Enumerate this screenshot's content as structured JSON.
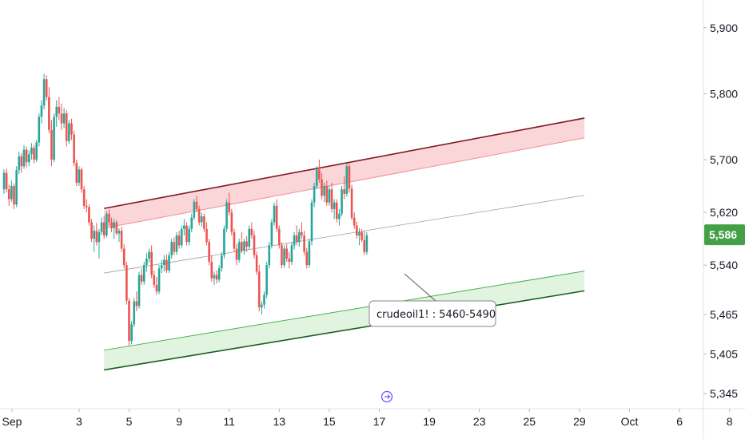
{
  "chart_data": {
    "type": "candlestick",
    "ylim": [
      5300,
      5930
    ],
    "y_ticks": [
      {
        "value": 5900,
        "label": "5,900"
      },
      {
        "value": 5800,
        "label": "5,800"
      },
      {
        "value": 5700,
        "label": "5,700"
      },
      {
        "value": 5620,
        "label": "5,620"
      },
      {
        "value": 5540,
        "label": "5,540"
      },
      {
        "value": 5465,
        "label": "5,465"
      },
      {
        "value": 5405,
        "label": "5,405"
      },
      {
        "value": 5345,
        "label": "5,345"
      }
    ],
    "x_ticks": [
      {
        "t": 0,
        "label": "Sep"
      },
      {
        "t": 3,
        "label": "3"
      },
      {
        "t": 5,
        "label": "5"
      },
      {
        "t": 7,
        "label": "9"
      },
      {
        "t": 9,
        "label": "11"
      },
      {
        "t": 11,
        "label": "13"
      },
      {
        "t": 13,
        "label": "15"
      },
      {
        "t": 15,
        "label": "17"
      },
      {
        "t": 17,
        "label": "19"
      },
      {
        "t": 19,
        "label": "23"
      },
      {
        "t": 21,
        "label": "25"
      },
      {
        "t": 23,
        "label": "29"
      },
      {
        "t": 25,
        "label": "Oct"
      },
      {
        "t": 27,
        "label": "6"
      },
      {
        "t": 29,
        "label": "8"
      }
    ],
    "last_price": {
      "value": 5586,
      "label": "5,586"
    },
    "upper_channel": {
      "t0": 4.0,
      "v0": 5626,
      "t1": 23.2,
      "v1": 5763,
      "band": 30
    },
    "mid_line": {
      "t0": 4.0,
      "v0": 5528,
      "t1": 23.2,
      "v1": 5646
    },
    "lower_channel": {
      "t0": 4.0,
      "v0": 5411,
      "t1": 23.2,
      "v1": 5531,
      "band": 30
    },
    "annotation": "crudeoil1! : 5460-5490",
    "colors": {
      "up": "#26a69a",
      "down": "#ef5350",
      "upper_fill": "#f8c8cc",
      "upper_line": "#801922",
      "upper_edge": "#f28b93",
      "lower_fill": "#d6f0d6",
      "lower_line": "#1b5e20",
      "lower_edge": "#4caf50",
      "mid_line": "#9e9e9e",
      "price_tag": "#43a047"
    },
    "ohlc": [
      [
        0.0,
        5655,
        5685,
        5648,
        5680
      ],
      [
        0.1,
        5680,
        5686,
        5650,
        5655
      ],
      [
        0.2,
        5655,
        5662,
        5630,
        5640
      ],
      [
        0.3,
        5640,
        5668,
        5636,
        5660
      ],
      [
        0.4,
        5660,
        5664,
        5625,
        5632
      ],
      [
        0.5,
        5632,
        5690,
        5628,
        5684
      ],
      [
        0.6,
        5684,
        5712,
        5678,
        5705
      ],
      [
        0.7,
        5705,
        5710,
        5680,
        5690
      ],
      [
        0.8,
        5690,
        5722,
        5686,
        5715
      ],
      [
        0.9,
        5715,
        5720,
        5688,
        5696
      ],
      [
        1.0,
        5696,
        5714,
        5690,
        5708
      ],
      [
        1.1,
        5708,
        5725,
        5700,
        5718
      ],
      [
        1.2,
        5718,
        5722,
        5694,
        5700
      ],
      [
        1.3,
        5700,
        5730,
        5696,
        5726
      ],
      [
        1.4,
        5726,
        5770,
        5720,
        5765
      ],
      [
        1.5,
        5765,
        5790,
        5755,
        5782
      ],
      [
        1.6,
        5782,
        5830,
        5776,
        5822
      ],
      [
        1.7,
        5822,
        5828,
        5790,
        5795
      ],
      [
        1.8,
        5795,
        5810,
        5740,
        5745
      ],
      [
        1.9,
        5745,
        5760,
        5690,
        5700
      ],
      [
        2.0,
        5700,
        5770,
        5696,
        5765
      ],
      [
        2.1,
        5765,
        5790,
        5750,
        5780
      ],
      [
        2.2,
        5780,
        5795,
        5760,
        5770
      ],
      [
        2.3,
        5770,
        5785,
        5745,
        5755
      ],
      [
        2.4,
        5755,
        5778,
        5748,
        5770
      ],
      [
        2.5,
        5770,
        5775,
        5720,
        5728
      ],
      [
        2.6,
        5728,
        5760,
        5724,
        5755
      ],
      [
        2.7,
        5755,
        5762,
        5730,
        5738
      ],
      [
        2.8,
        5738,
        5744,
        5690,
        5695
      ],
      [
        2.9,
        5695,
        5700,
        5660,
        5665
      ],
      [
        3.0,
        5665,
        5690,
        5660,
        5685
      ],
      [
        3.1,
        5685,
        5688,
        5650,
        5655
      ],
      [
        3.2,
        5655,
        5660,
        5625,
        5630
      ],
      [
        3.3,
        5630,
        5640,
        5620,
        5628
      ],
      [
        3.4,
        5628,
        5632,
        5600,
        5605
      ],
      [
        3.5,
        5605,
        5610,
        5575,
        5580
      ],
      [
        3.6,
        5580,
        5600,
        5560,
        5592
      ],
      [
        3.7,
        5592,
        5604,
        5570,
        5575
      ],
      [
        3.8,
        5575,
        5595,
        5550,
        5590
      ],
      [
        3.9,
        5590,
        5612,
        5586,
        5605
      ],
      [
        4.0,
        5605,
        5615,
        5580,
        5585
      ],
      [
        4.1,
        5585,
        5622,
        5582,
        5618
      ],
      [
        4.2,
        5618,
        5624,
        5600,
        5605
      ],
      [
        4.3,
        5605,
        5612,
        5590,
        5596
      ],
      [
        4.4,
        5596,
        5610,
        5580,
        5605
      ],
      [
        4.5,
        5605,
        5608,
        5585,
        5588
      ],
      [
        4.6,
        5588,
        5596,
        5575,
        5592
      ],
      [
        4.7,
        5592,
        5598,
        5560,
        5565
      ],
      [
        4.8,
        5565,
        5572,
        5535,
        5540
      ],
      [
        4.9,
        5540,
        5545,
        5480,
        5486
      ],
      [
        5.0,
        5486,
        5490,
        5418,
        5425
      ],
      [
        5.1,
        5425,
        5455,
        5420,
        5450
      ],
      [
        5.2,
        5450,
        5490,
        5446,
        5485
      ],
      [
        5.3,
        5485,
        5500,
        5470,
        5478
      ],
      [
        5.4,
        5478,
        5530,
        5474,
        5525
      ],
      [
        5.5,
        5525,
        5535,
        5510,
        5515
      ],
      [
        5.6,
        5515,
        5545,
        5510,
        5540
      ],
      [
        5.7,
        5540,
        5558,
        5530,
        5550
      ],
      [
        5.8,
        5550,
        5565,
        5544,
        5560
      ],
      [
        5.9,
        5560,
        5570,
        5520,
        5525
      ],
      [
        6.0,
        5525,
        5532,
        5505,
        5510
      ],
      [
        6.1,
        5510,
        5522,
        5495,
        5500
      ],
      [
        6.2,
        5500,
        5540,
        5496,
        5535
      ],
      [
        6.3,
        5535,
        5548,
        5528,
        5540
      ],
      [
        6.4,
        5540,
        5555,
        5530,
        5548
      ],
      [
        6.5,
        5548,
        5556,
        5528,
        5532
      ],
      [
        6.6,
        5532,
        5560,
        5528,
        5555
      ],
      [
        6.7,
        5555,
        5580,
        5550,
        5575
      ],
      [
        6.8,
        5575,
        5582,
        5555,
        5560
      ],
      [
        6.9,
        5560,
        5590,
        5556,
        5585
      ],
      [
        7.0,
        5585,
        5592,
        5565,
        5570
      ],
      [
        7.1,
        5570,
        5600,
        5566,
        5595
      ],
      [
        7.2,
        5595,
        5610,
        5585,
        5600
      ],
      [
        7.3,
        5600,
        5605,
        5570,
        5575
      ],
      [
        7.4,
        5575,
        5600,
        5570,
        5595
      ],
      [
        7.5,
        5595,
        5618,
        5590,
        5612
      ],
      [
        7.6,
        5612,
        5640,
        5608,
        5636
      ],
      [
        7.7,
        5636,
        5645,
        5620,
        5625
      ],
      [
        7.8,
        5625,
        5630,
        5600,
        5605
      ],
      [
        7.9,
        5605,
        5620,
        5598,
        5614
      ],
      [
        8.0,
        5614,
        5618,
        5590,
        5595
      ],
      [
        8.1,
        5595,
        5605,
        5570,
        5575
      ],
      [
        8.2,
        5575,
        5580,
        5540,
        5545
      ],
      [
        8.3,
        5545,
        5555,
        5515,
        5520
      ],
      [
        8.4,
        5520,
        5530,
        5510,
        5525
      ],
      [
        8.5,
        5525,
        5532,
        5512,
        5518
      ],
      [
        8.6,
        5518,
        5540,
        5514,
        5535
      ],
      [
        8.7,
        5535,
        5560,
        5530,
        5555
      ],
      [
        8.8,
        5555,
        5600,
        5550,
        5595
      ],
      [
        8.9,
        5595,
        5640,
        5590,
        5635
      ],
      [
        9.0,
        5635,
        5650,
        5615,
        5620
      ],
      [
        9.1,
        5620,
        5625,
        5585,
        5590
      ],
      [
        9.2,
        5590,
        5595,
        5560,
        5565
      ],
      [
        9.3,
        5565,
        5572,
        5540,
        5548
      ],
      [
        9.4,
        5548,
        5580,
        5544,
        5575
      ],
      [
        9.5,
        5575,
        5590,
        5558,
        5562
      ],
      [
        9.6,
        5562,
        5580,
        5556,
        5576
      ],
      [
        9.7,
        5576,
        5584,
        5560,
        5568
      ],
      [
        9.8,
        5568,
        5600,
        5564,
        5595
      ],
      [
        9.9,
        5595,
        5605,
        5580,
        5585
      ],
      [
        10.0,
        5585,
        5592,
        5550,
        5555
      ],
      [
        10.1,
        5555,
        5560,
        5525,
        5530
      ],
      [
        10.2,
        5530,
        5540,
        5470,
        5476
      ],
      [
        10.3,
        5476,
        5485,
        5465,
        5480
      ],
      [
        10.4,
        5480,
        5500,
        5474,
        5495
      ],
      [
        10.5,
        5495,
        5545,
        5490,
        5540
      ],
      [
        10.6,
        5540,
        5575,
        5535,
        5570
      ],
      [
        10.7,
        5570,
        5610,
        5565,
        5605
      ],
      [
        10.8,
        5605,
        5635,
        5600,
        5630
      ],
      [
        10.9,
        5630,
        5640,
        5590,
        5595
      ],
      [
        11.0,
        5595,
        5600,
        5565,
        5570
      ],
      [
        11.1,
        5570,
        5575,
        5535,
        5540
      ],
      [
        11.2,
        5540,
        5570,
        5536,
        5565
      ],
      [
        11.3,
        5565,
        5572,
        5545,
        5550
      ],
      [
        11.4,
        5550,
        5560,
        5535,
        5545
      ],
      [
        11.5,
        5545,
        5575,
        5540,
        5570
      ],
      [
        11.6,
        5570,
        5590,
        5564,
        5585
      ],
      [
        11.7,
        5585,
        5600,
        5570,
        5575
      ],
      [
        11.8,
        5575,
        5595,
        5568,
        5590
      ],
      [
        11.9,
        5590,
        5605,
        5580,
        5585
      ],
      [
        12.0,
        5585,
        5592,
        5555,
        5560
      ],
      [
        12.1,
        5560,
        5566,
        5535,
        5540
      ],
      [
        12.2,
        5540,
        5580,
        5536,
        5576
      ],
      [
        12.3,
        5576,
        5640,
        5570,
        5635
      ],
      [
        12.4,
        5635,
        5665,
        5628,
        5660
      ],
      [
        12.5,
        5660,
        5690,
        5655,
        5685
      ],
      [
        12.6,
        5685,
        5700,
        5665,
        5670
      ],
      [
        12.7,
        5670,
        5680,
        5640,
        5645
      ],
      [
        12.8,
        5645,
        5665,
        5636,
        5660
      ],
      [
        12.9,
        5660,
        5668,
        5630,
        5635
      ],
      [
        13.0,
        5635,
        5660,
        5630,
        5655
      ],
      [
        13.1,
        5655,
        5665,
        5620,
        5625
      ],
      [
        13.2,
        5625,
        5640,
        5610,
        5635
      ],
      [
        13.3,
        5635,
        5640,
        5605,
        5610
      ],
      [
        13.4,
        5610,
        5625,
        5600,
        5618
      ],
      [
        13.5,
        5618,
        5660,
        5614,
        5655
      ],
      [
        13.6,
        5655,
        5675,
        5640,
        5648
      ],
      [
        13.7,
        5648,
        5695,
        5644,
        5690
      ],
      [
        13.8,
        5690,
        5695,
        5650,
        5656
      ],
      [
        13.9,
        5656,
        5662,
        5608,
        5612
      ],
      [
        14.0,
        5612,
        5620,
        5595,
        5600
      ],
      [
        14.1,
        5600,
        5606,
        5580,
        5585
      ],
      [
        14.2,
        5585,
        5596,
        5570,
        5590
      ],
      [
        14.3,
        5590,
        5595,
        5575,
        5578
      ],
      [
        14.4,
        5578,
        5592,
        5555,
        5560
      ],
      [
        14.5,
        5560,
        5590,
        5556,
        5585
      ]
    ]
  }
}
